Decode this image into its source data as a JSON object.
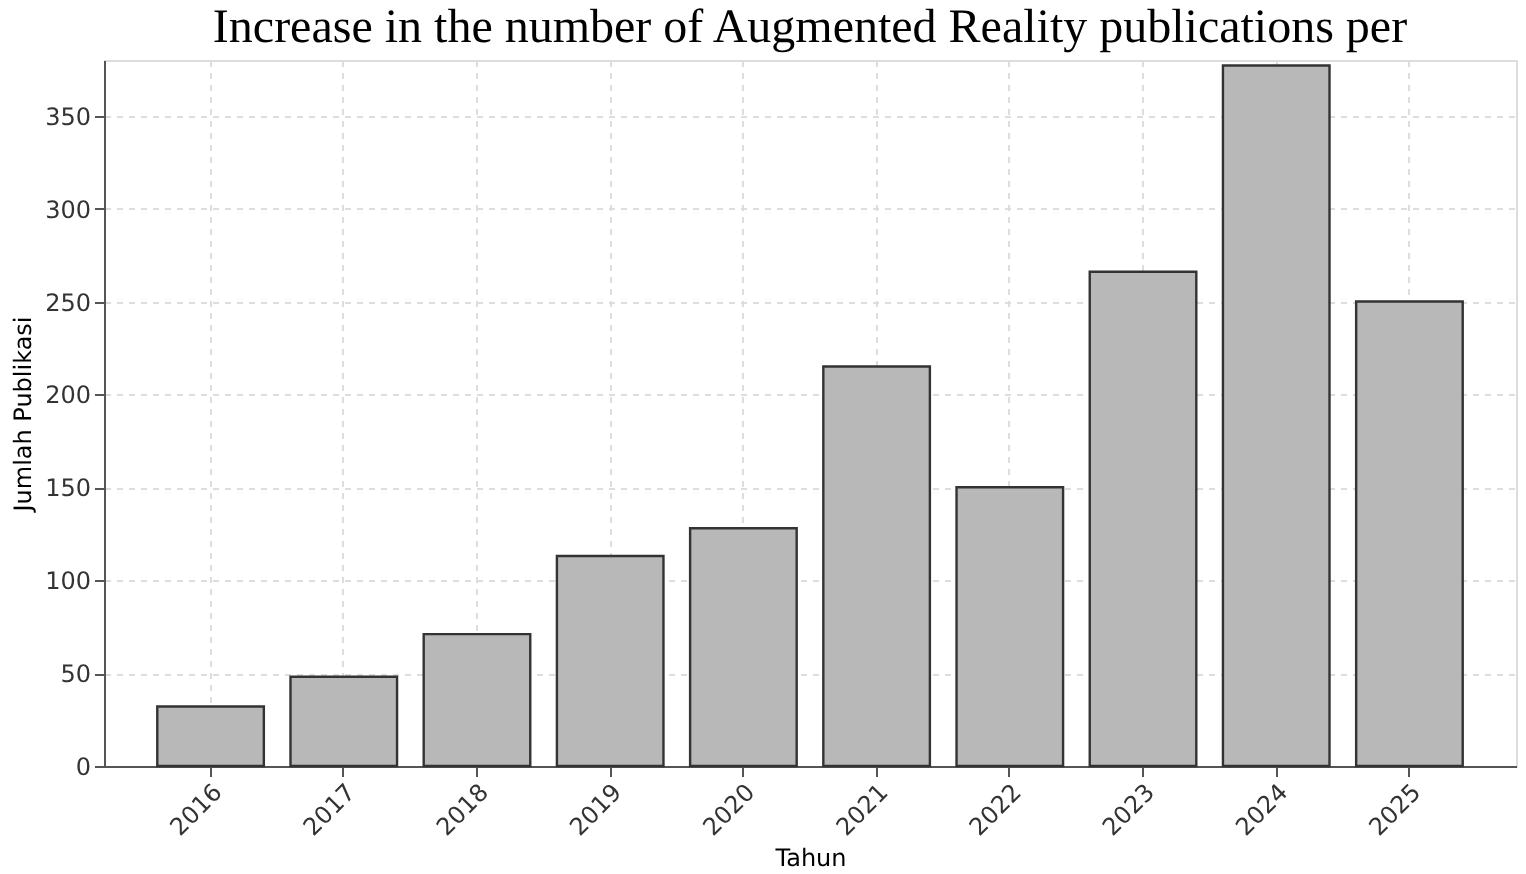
{
  "chart_data": {
    "type": "bar",
    "title": "Increase in the number of Augmented Reality publications per",
    "xlabel": "Tahun",
    "ylabel": "Jumlah Publikasi",
    "categories": [
      "2016",
      "2017",
      "2018",
      "2019",
      "2020",
      "2021",
      "2022",
      "2023",
      "2024",
      "2025"
    ],
    "values": [
      32,
      48,
      71,
      113,
      128,
      215,
      150,
      266,
      377,
      250
    ],
    "color": "#b8b8b8",
    "ylim": [
      0,
      380
    ],
    "yticks": [
      0,
      50,
      100,
      150,
      200,
      250,
      300,
      350
    ],
    "grid": true
  }
}
